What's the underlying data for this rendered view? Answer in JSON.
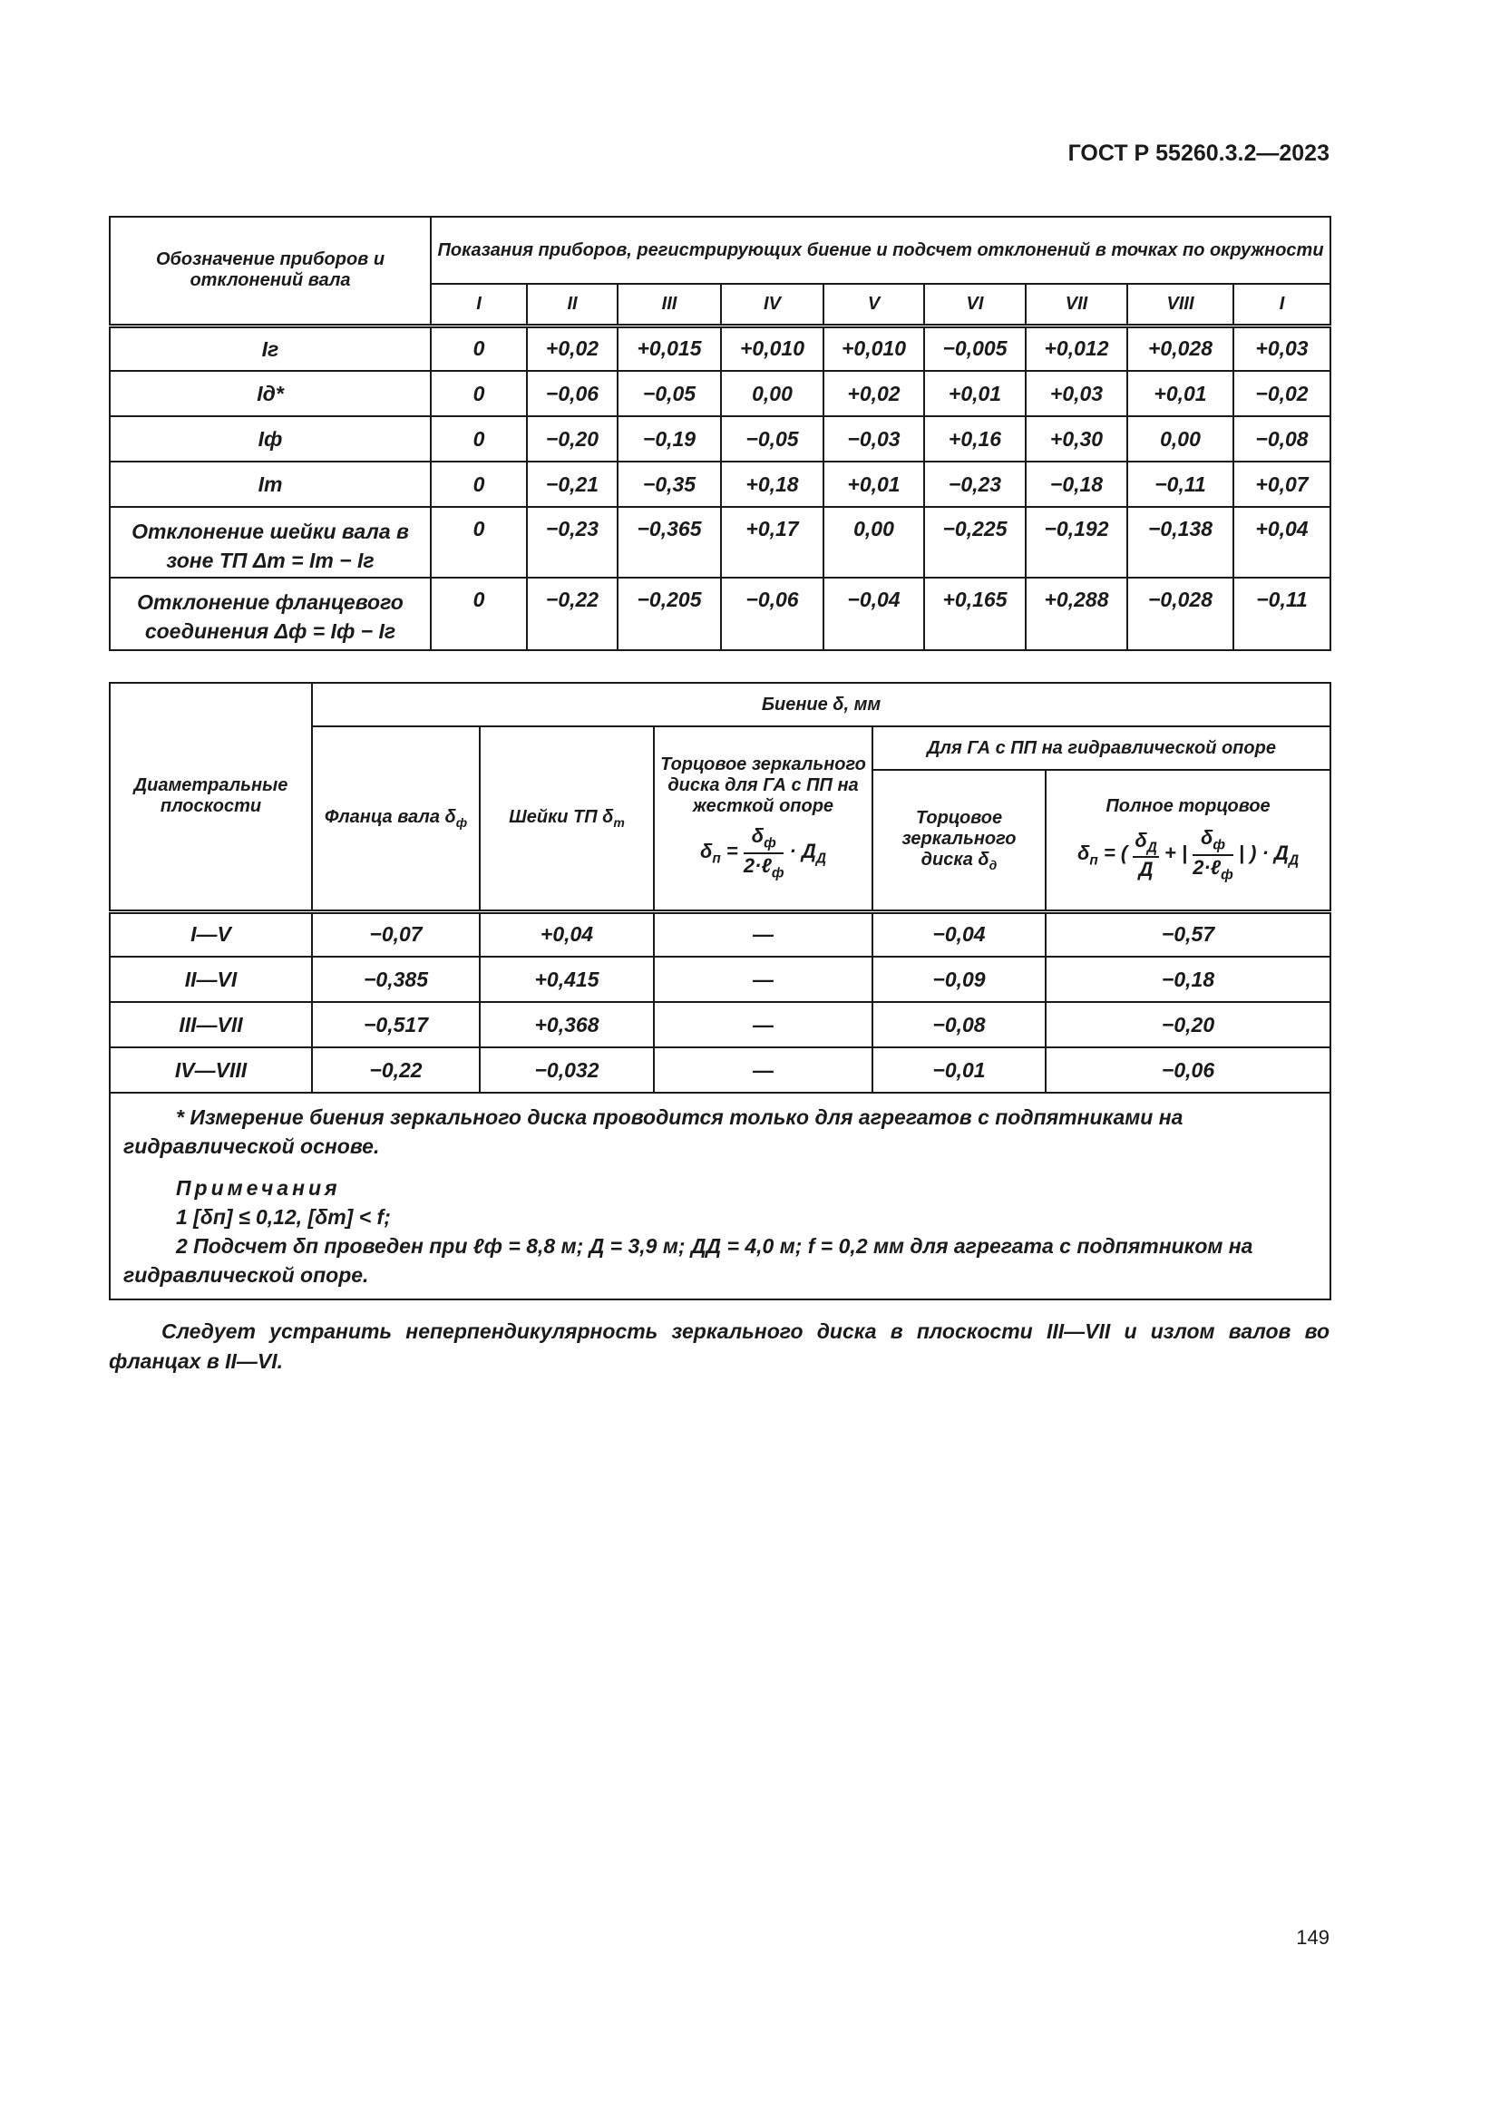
{
  "header": {
    "doc_code": "ГОСТ Р 55260.3.2—2023"
  },
  "table1": {
    "col0_header": "Обозначение приборов и отклонений вала",
    "group_header": "Показания приборов, регистрирующих биение и подсчет отклонений в точках по окружности",
    "points": [
      "I",
      "II",
      "III",
      "IV",
      "V",
      "VI",
      "VII",
      "VIII",
      "I"
    ],
    "rows": [
      {
        "label": "Iг",
        "values": [
          "0",
          "+0,02",
          "+0,015",
          "+0,010",
          "+0,010",
          "−0,005",
          "+0,012",
          "+0,028",
          "+0,03"
        ]
      },
      {
        "label": "Iд*",
        "values": [
          "0",
          "−0,06",
          "−0,05",
          "0,00",
          "+0,02",
          "+0,01",
          "+0,03",
          "+0,01",
          "−0,02"
        ]
      },
      {
        "label": "Iф",
        "values": [
          "0",
          "−0,20",
          "−0,19",
          "−0,05",
          "−0,03",
          "+0,16",
          "+0,30",
          "0,00",
          "−0,08"
        ]
      },
      {
        "label": "Im",
        "values": [
          "0",
          "−0,21",
          "−0,35",
          "+0,18",
          "+0,01",
          "−0,23",
          "−0,18",
          "−0,11",
          "+0,07"
        ]
      },
      {
        "label": "Отклонение шейки вала в зоне ТП Δm = Im − Iг",
        "values": [
          "0",
          "−0,23",
          "−0,365",
          "+0,17",
          "0,00",
          "−0,225",
          "−0,192",
          "−0,138",
          "+0,04"
        ]
      },
      {
        "label": "Отклонение фланцевого соединения Δф = Iф − Iг",
        "values": [
          "0",
          "−0,22",
          "−0,205",
          "−0,06",
          "−0,04",
          "+0,165",
          "+0,288",
          "−0,028",
          "−0,11"
        ]
      }
    ]
  },
  "table2": {
    "col0_header": "Диаметральные плоскости",
    "group_header": "Биение δ, мм",
    "flange_header": "Фланца вала δ",
    "flange_sub": "ф",
    "neck_header": "Шейки ТП δ",
    "neck_sub": "m",
    "rigid_header": "Торцовое зеркального диска для ГА с ПП на жесткой опоре",
    "hydro_group": "Для ГА с ПП на гидравлической опоре",
    "mirror_header": "Торцовое зеркального диска δ",
    "mirror_sub": "д",
    "full_header": "Полное торцовое",
    "rows": [
      {
        "plane": "I—V",
        "flange": "−0,07",
        "neck": "+0,04",
        "rigid": "—",
        "mirror": "−0,04",
        "full": "−0,57"
      },
      {
        "plane": "II—VI",
        "flange": "−0,385",
        "neck": "+0,415",
        "rigid": "—",
        "mirror": "−0,09",
        "full": "−0,18"
      },
      {
        "plane": "III—VII",
        "flange": "−0,517",
        "neck": "+0,368",
        "rigid": "—",
        "mirror": "−0,08",
        "full": "−0,20"
      },
      {
        "plane": "IV—VIII",
        "flange": "−0,22",
        "neck": "−0,032",
        "rigid": "—",
        "mirror": "−0,01",
        "full": "−0,06"
      }
    ],
    "footnote": "* Измерение биения зеркального диска проводится только для агрегатов с подпятниками на гидравлической основе.",
    "notes_title": "Примечания",
    "note1": "1 [δп] ≤ 0,12, [δm] < f;",
    "note2": "2 Подсчет δп проведен при ℓф = 8,8 м; Д = 3,9 м; ДД = 4,0 м; f = 0,2 мм для агрегата с подпятником на гидравлической опоре."
  },
  "conclusion": "Следует устранить неперпендикулярность зеркального диска в плоскости III—VII и излом валов во фланцах в II—VI.",
  "page_number": "149"
}
